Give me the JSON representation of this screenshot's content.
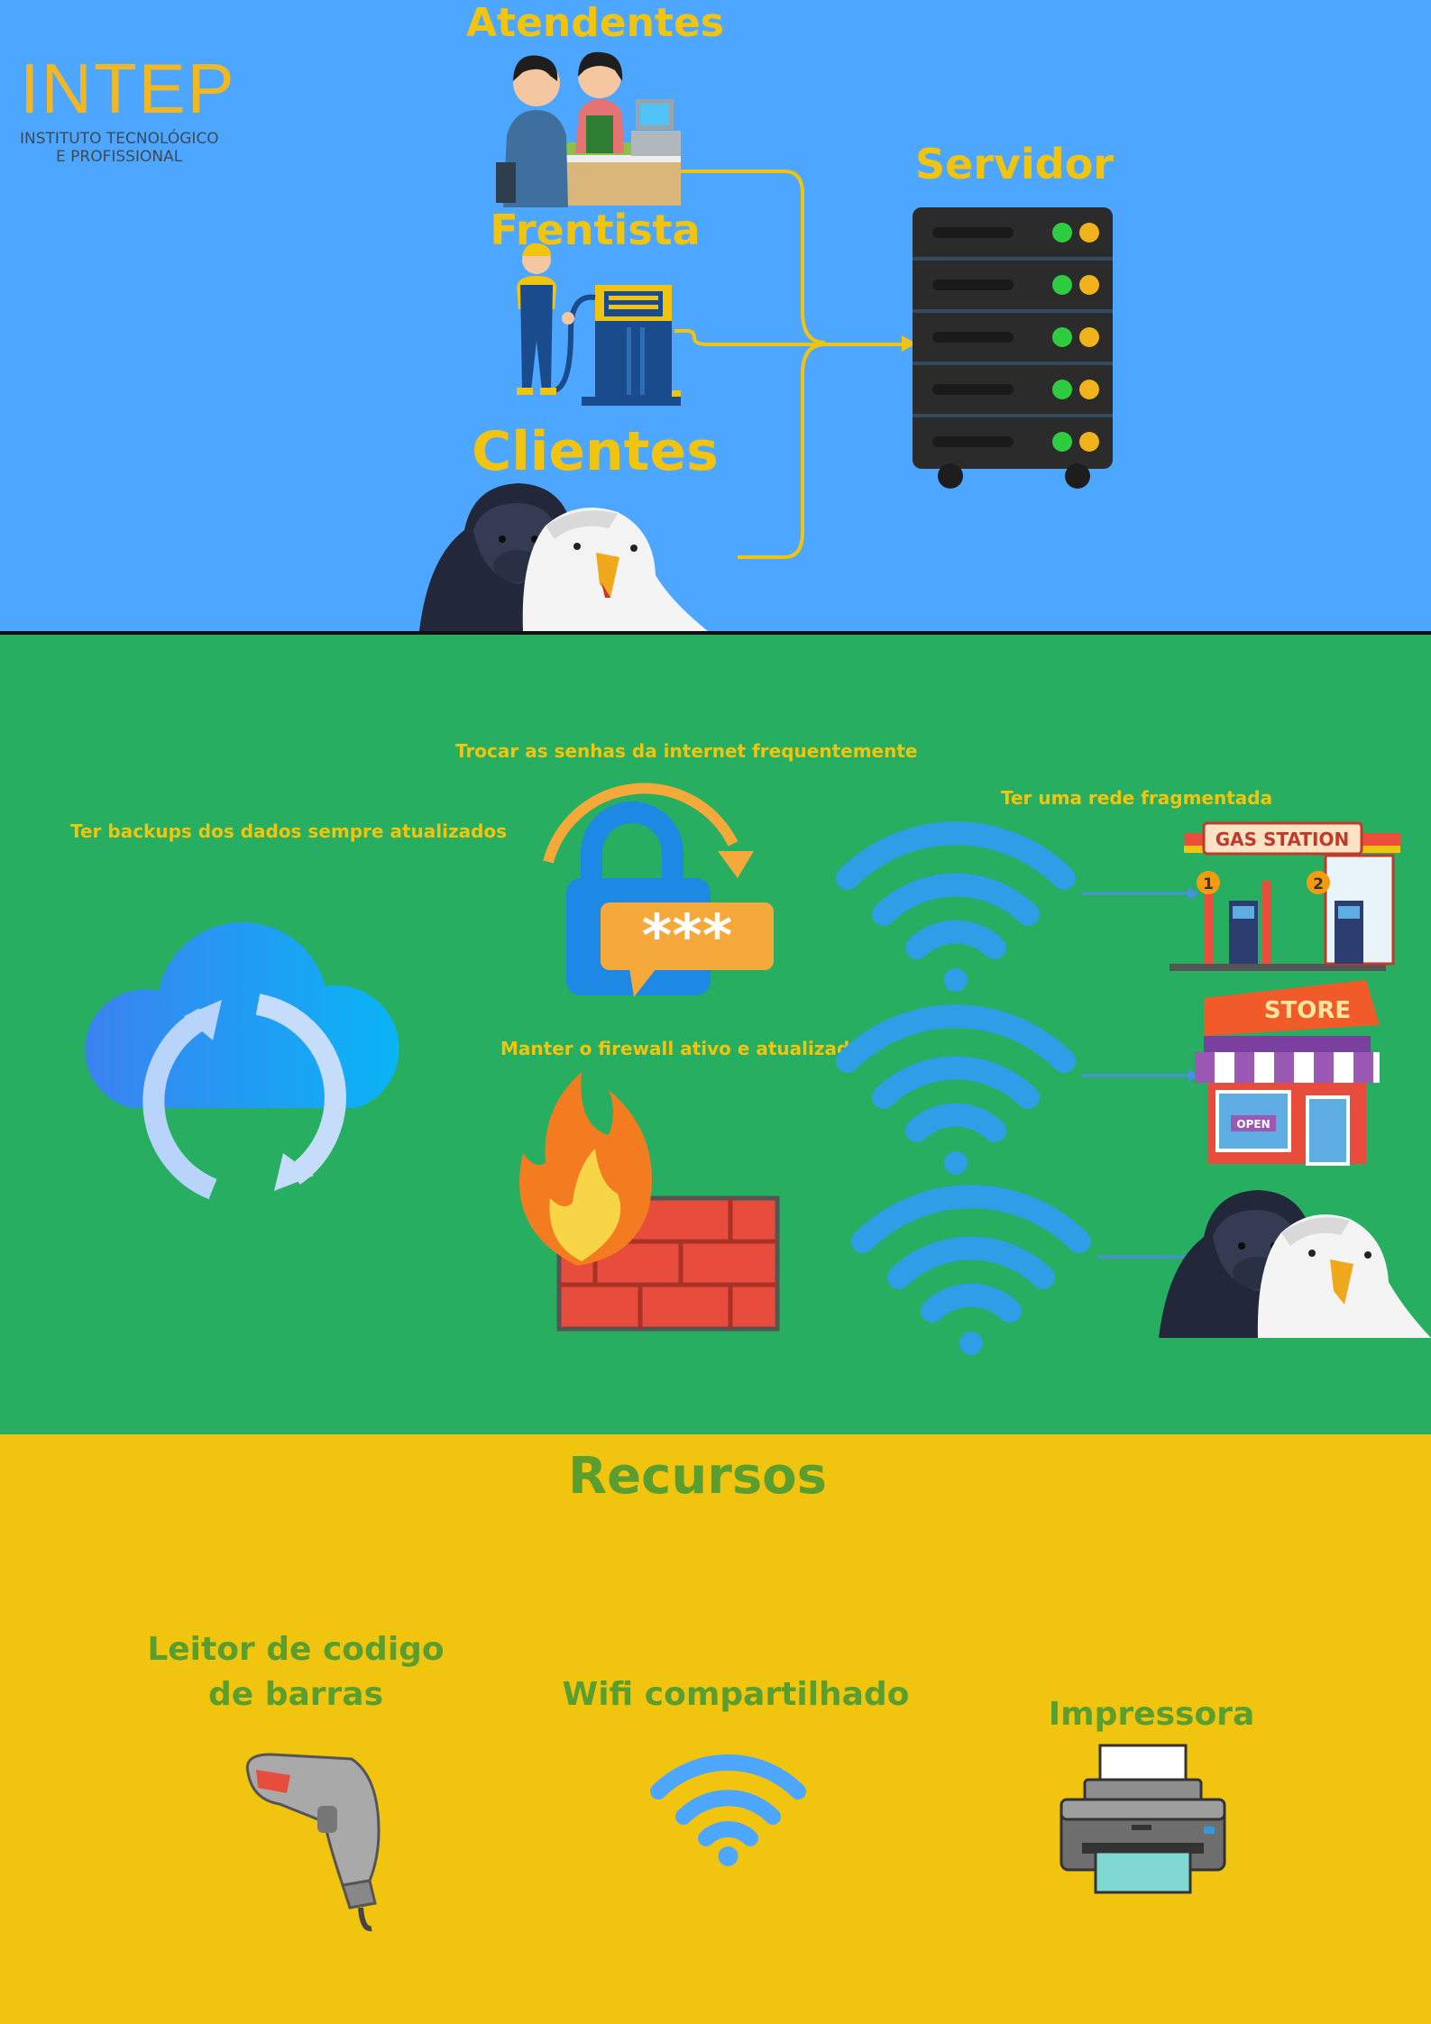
{
  "logo": {
    "brand": "INTEP",
    "line1": "INSTITUTO TECNOLÓGICO",
    "line2": "E PROFISSIONAL"
  },
  "network": {
    "roles": [
      {
        "label": "Atendentes"
      },
      {
        "label": "Frentista"
      },
      {
        "label": "Clientes"
      }
    ],
    "server_label": "Servidor"
  },
  "security": {
    "backup": "Ter backups dos dados sempre atualizados",
    "passwords": "Trocar as senhas da internet frequentemente",
    "password_mask": "***",
    "firewall": "Manter o firewall ativo e atualizado",
    "fragmented": "Ter uma rede fragmentada",
    "gas_station_sign": "GAS STATION",
    "pump_numbers": [
      "1",
      "2"
    ],
    "store_sign": "STORE",
    "open_sign": "OPEN"
  },
  "resources": {
    "title": "Recursos",
    "items": [
      {
        "label_line1": "Leitor de codigo",
        "label_line2": "de barras"
      },
      {
        "label_line1": "Wifi compartilhado"
      },
      {
        "label_line1": "Impressora"
      }
    ]
  },
  "colors": {
    "top_bg": "#4da6ff",
    "mid_bg": "#27ae60",
    "bottom_bg": "#f1c40f",
    "yellow_text": "#f1c40f",
    "green_text": "#5a9e2f",
    "wifi": "#2e9fe6",
    "server": "#2b2b2b"
  }
}
